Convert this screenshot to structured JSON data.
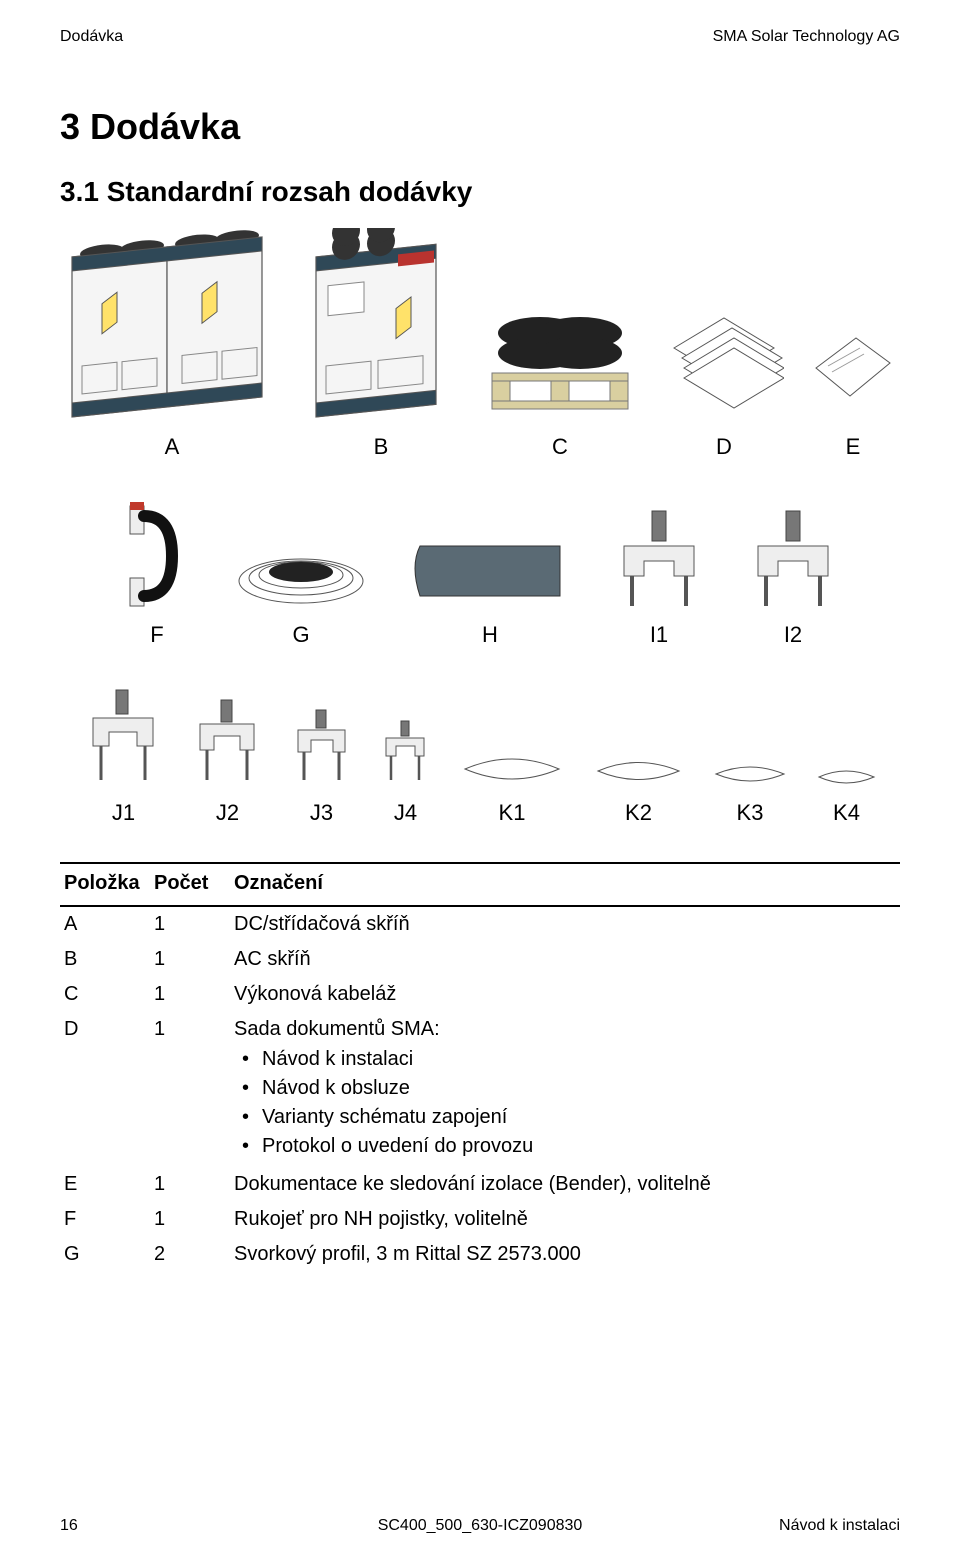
{
  "header": {
    "left": "Dodávka",
    "right": "SMA Solar Technology AG"
  },
  "section_title": "3  Dodávka",
  "subsection_title": "3.1  Standardní rozsah dodávky",
  "figure": {
    "row1_labels": [
      "A",
      "B",
      "C",
      "D",
      "E"
    ],
    "row1_widths": [
      220,
      150,
      160,
      120,
      90
    ],
    "row2_labels": [
      "F",
      "G",
      "H",
      "I1",
      "I2"
    ],
    "row2_widths": [
      90,
      150,
      180,
      110,
      110
    ],
    "row3_labels": [
      "J1",
      "J2",
      "J3",
      "J4",
      "K1",
      "K2",
      "K3",
      "K4"
    ],
    "row3_widths": [
      85,
      75,
      65,
      55,
      110,
      95,
      80,
      65
    ]
  },
  "table": {
    "headers": [
      "Položka",
      "Počet",
      "Označení"
    ],
    "rows": [
      {
        "item": "A",
        "qty": "1",
        "desc": "DC/střídačová skříň"
      },
      {
        "item": "B",
        "qty": "1",
        "desc": "AC skříň"
      },
      {
        "item": "C",
        "qty": "1",
        "desc": "Výkonová kabeláž"
      },
      {
        "item": "D",
        "qty": "1",
        "desc": "Sada dokumentů SMA:",
        "bullets": [
          "Návod k instalaci",
          "Návod k obsluze",
          "Varianty schématu zapojení",
          "Protokol o uvedení do provozu"
        ]
      },
      {
        "item": "E",
        "qty": "1",
        "desc": "Dokumentace ke sledování izolace (Bender), volitelně"
      },
      {
        "item": "F",
        "qty": "1",
        "desc": "Rukojeť pro NH pojistky, volitelně"
      },
      {
        "item": "G",
        "qty": "2",
        "desc": "Svorkový profil, 3 m Rittal SZ 2573.000"
      }
    ]
  },
  "footer": {
    "page": "16",
    "docid": "SC400_500_630-ICZ090830",
    "title": "Návod k instalaci"
  },
  "style": {
    "text_color": "#000000",
    "bg_color": "#ffffff",
    "rule_color": "#000000",
    "illus_stroke": "#555555",
    "illus_fill": "#f2f2f2",
    "illus_dark": "#333333",
    "label_fontsize": 22,
    "body_fontsize": 20,
    "header_fontsize": 16
  }
}
